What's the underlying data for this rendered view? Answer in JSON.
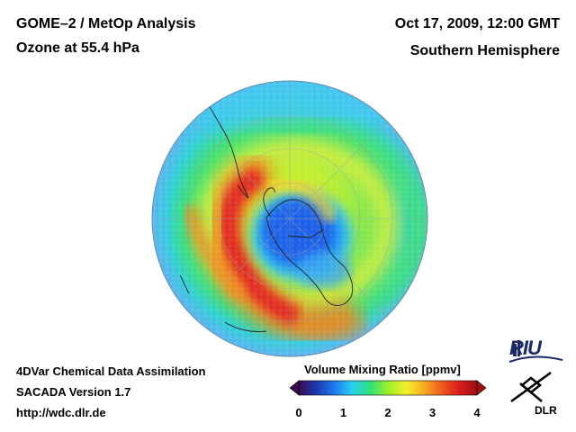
{
  "header": {
    "title_line1": "GOME–2 / MetOp Analysis",
    "title_line2": "Ozone at 55.4 hPa",
    "date": "Oct 17, 2009, 12:00 GMT",
    "region": "Southern Hemisphere"
  },
  "footer": {
    "line1": "4DVar Chemical Data Assimilation",
    "line2": "SACADA Version 1.7",
    "line3": "http://wdc.dlr.de"
  },
  "colorbar": {
    "label": "Volume Mixing Ratio [ppmv]",
    "ticks": [
      "0",
      "1",
      "2",
      "3",
      "4"
    ],
    "min": 0,
    "max": 4,
    "colors": [
      "#3a0a50",
      "#1a3ab0",
      "#1e7af0",
      "#2ad0f0",
      "#2ee07a",
      "#9af02a",
      "#f0f02a",
      "#f8b020",
      "#f25a1e",
      "#d81e1e",
      "#a01010"
    ]
  },
  "logos": {
    "riu": "RIU",
    "dlr": "DLR"
  },
  "map": {
    "projection": "orthographic-south-pole",
    "ozone_hole_min_ppmv": 1.0,
    "collar_max_ppmv": 3.8,
    "background_ppmv": 2.0
  }
}
